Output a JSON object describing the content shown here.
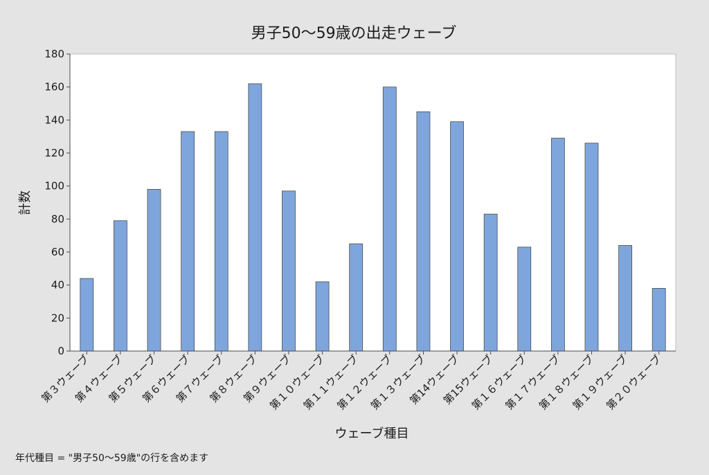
{
  "footnote": "年代種目 = \"男子50～59歳\"の行を含めます",
  "chart_data": {
    "type": "bar",
    "title": "男子50～59歳の出走ウェーブ",
    "xlabel": "ウェーブ種目",
    "ylabel": "計数",
    "ylim": [
      0,
      180
    ],
    "yticks": [
      0,
      20,
      40,
      60,
      80,
      100,
      120,
      140,
      160,
      180
    ],
    "grid": false,
    "legend": "none",
    "bar_color": "#7ea6dc",
    "bar_edge_color": "#4a4a4a",
    "categories": [
      "第３ウェーブ",
      "第４ウェーブ",
      "第５ウェーブ",
      "第６ウェーブ",
      "第７ウェーブ",
      "第８ウェーブ",
      "第９ウェーブ",
      "第１０ウェーブ",
      "第１１ウェーブ",
      "第１２ウェーブ",
      "第１３ウェーブ",
      "第14ウェーブ",
      "第15ウェーブ",
      "第１６ウェーブ",
      "第１７ウェーブ",
      "第１８ウェーブ",
      "第１９ウェーブ",
      "第２０ウェーブ"
    ],
    "values": [
      44,
      79,
      98,
      133,
      133,
      162,
      97,
      42,
      65,
      160,
      145,
      139,
      83,
      63,
      129,
      126,
      64,
      38
    ]
  }
}
